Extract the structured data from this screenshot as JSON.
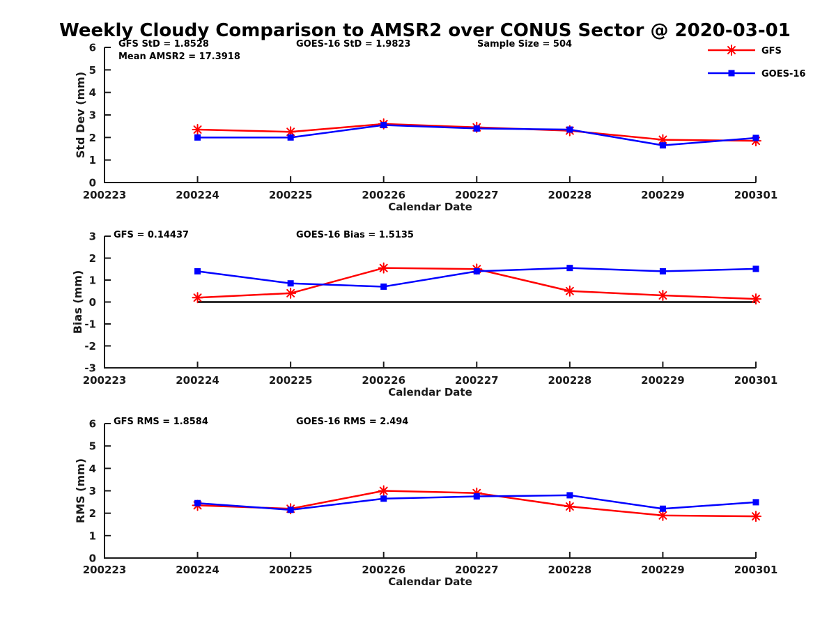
{
  "title": "Weekly Cloudy Comparison to AMSR2 over CONUS Sector @ 2020-03-01",
  "colors": {
    "gfs": "#FF0000",
    "goes16": "#0000FF",
    "axis": "#1a1a1a",
    "text": "#000000",
    "zero_line": "#000000",
    "background": "#FFFFFF"
  },
  "legend": {
    "entries": [
      {
        "label": "GFS",
        "color": "#FF0000",
        "marker": "asterisk"
      },
      {
        "label": "GOES-16",
        "color": "#0000FF",
        "marker": "square"
      }
    ]
  },
  "chart_data": [
    {
      "id": "stddev",
      "type": "line",
      "ylabel": "Std Dev (mm)",
      "xlabel": "Calendar Date",
      "ylim": [
        0,
        6
      ],
      "y_ticklabels": [
        "0",
        "1",
        "2",
        "3",
        "4",
        "5",
        "6"
      ],
      "x_ticklabels": [
        "200223",
        "200224",
        "200225",
        "200226",
        "200227",
        "200228",
        "200229",
        "200301"
      ],
      "categories": [
        "200224",
        "200225",
        "200226",
        "200227",
        "200228",
        "200229",
        "200301"
      ],
      "annotations": [
        "GFS StD = 1.8528",
        "Mean AMSR2 = 17.3918",
        "GOES-16 StD = 1.9823",
        "Sample Size = 504"
      ],
      "zero_line": false,
      "grid": false,
      "series": [
        {
          "name": "GFS",
          "color": "#FF0000",
          "marker": "asterisk",
          "values": [
            2.35,
            2.25,
            2.6,
            2.45,
            2.3,
            1.9,
            1.85
          ]
        },
        {
          "name": "GOES-16",
          "color": "#0000FF",
          "marker": "square",
          "values": [
            2.0,
            2.0,
            2.55,
            2.4,
            2.35,
            1.65,
            1.98
          ]
        }
      ]
    },
    {
      "id": "bias",
      "type": "line",
      "ylabel": "Bias (mm)",
      "xlabel": "Calendar Date",
      "ylim": [
        -3,
        3
      ],
      "y_ticklabels": [
        "-3",
        "-2",
        "-1",
        "0",
        "1",
        "2",
        "3"
      ],
      "x_ticklabels": [
        "200223",
        "200224",
        "200225",
        "200226",
        "200227",
        "200228",
        "200229",
        "200301"
      ],
      "categories": [
        "200224",
        "200225",
        "200226",
        "200227",
        "200228",
        "200229",
        "200301"
      ],
      "annotations": [
        "GFS = 0.14437",
        "GOES-16 Bias  = 1.5135"
      ],
      "zero_line": true,
      "grid": false,
      "series": [
        {
          "name": "GFS",
          "color": "#FF0000",
          "marker": "asterisk",
          "values": [
            0.2,
            0.4,
            1.55,
            1.5,
            0.5,
            0.3,
            0.14
          ]
        },
        {
          "name": "GOES-16",
          "color": "#0000FF",
          "marker": "square",
          "values": [
            1.4,
            0.85,
            0.7,
            1.4,
            1.55,
            1.4,
            1.51
          ]
        }
      ]
    },
    {
      "id": "rms",
      "type": "line",
      "ylabel": "RMS (mm)",
      "xlabel": "Calendar Date",
      "ylim": [
        0,
        6
      ],
      "y_ticklabels": [
        "0",
        "1",
        "2",
        "3",
        "4",
        "5",
        "6"
      ],
      "x_ticklabels": [
        "200223",
        "200224",
        "200225",
        "200226",
        "200227",
        "200228",
        "200229",
        "200301"
      ],
      "categories": [
        "200224",
        "200225",
        "200226",
        "200227",
        "200228",
        "200229",
        "200301"
      ],
      "annotations": [
        "GFS RMS = 1.8584",
        "GOES-16 RMS = 2.494"
      ],
      "zero_line": false,
      "grid": false,
      "series": [
        {
          "name": "GFS",
          "color": "#FF0000",
          "marker": "asterisk",
          "values": [
            2.35,
            2.2,
            3.0,
            2.9,
            2.3,
            1.9,
            1.86
          ]
        },
        {
          "name": "GOES-16",
          "color": "#0000FF",
          "marker": "square",
          "values": [
            2.45,
            2.15,
            2.65,
            2.75,
            2.8,
            2.2,
            2.49
          ]
        }
      ]
    }
  ]
}
